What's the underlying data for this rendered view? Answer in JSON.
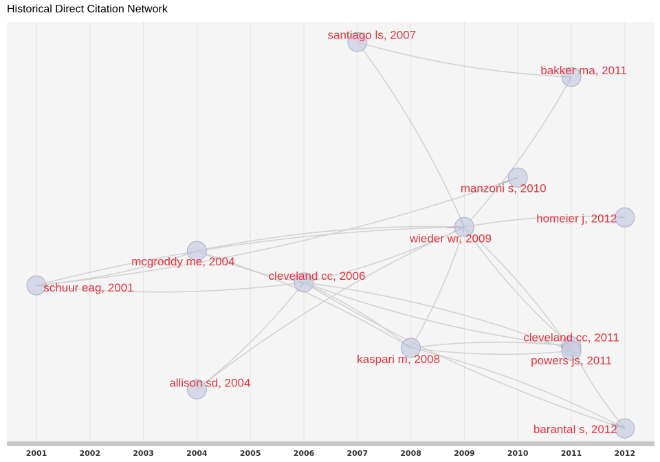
{
  "title": "Historical Direct Citation Network",
  "chart_data": {
    "type": "network",
    "x_axis": {
      "ticks": [
        "2001",
        "2002",
        "2003",
        "2004",
        "2005",
        "2006",
        "2007",
        "2008",
        "2009",
        "2010",
        "2011",
        "2012"
      ],
      "grid": true
    },
    "colors": {
      "panel": "#f5f5f5",
      "grid": "#e3e3e3",
      "edge": "#cfcfcf",
      "node_fill": "#c7cce0",
      "node_stroke": "#a9afc7",
      "label": "#e0343c",
      "axis_bar": "#c8c8c8"
    },
    "nodes": [
      {
        "id": "schuur2001",
        "label": "schuur eag, 2001",
        "year": 2001,
        "lane": 0.628
      },
      {
        "id": "mcgroddy2004",
        "label": "mcgroddy me, 2004",
        "year": 2004,
        "lane": 0.546
      },
      {
        "id": "allison2004",
        "label": "allison sd, 2004",
        "year": 2004,
        "lane": 0.876
      },
      {
        "id": "cleveland2006",
        "label": "cleveland cc, 2006",
        "year": 2006,
        "lane": 0.621
      },
      {
        "id": "santiago2007",
        "label": "santiago ls, 2007",
        "year": 2007,
        "lane": 0.048
      },
      {
        "id": "kaspari2008",
        "label": "kaspari m, 2008",
        "year": 2008,
        "lane": 0.777
      },
      {
        "id": "wieder2009",
        "label": "wieder wr, 2009",
        "year": 2009,
        "lane": 0.489
      },
      {
        "id": "manzoni2010",
        "label": "manzoni s, 2010",
        "year": 2010,
        "lane": 0.371
      },
      {
        "id": "bakker2011",
        "label": "bakker ma, 2011",
        "year": 2011,
        "lane": 0.131
      },
      {
        "id": "cleveland2011",
        "label": "cleveland cc, 2011",
        "year": 2011,
        "lane": 0.773
      },
      {
        "id": "powers2011",
        "label": "powers js, 2011",
        "year": 2011,
        "lane": 0.784
      },
      {
        "id": "homeier2012",
        "label": "homeier j, 2012",
        "year": 2012,
        "lane": 0.466
      },
      {
        "id": "barantal2012",
        "label": "barantal s, 2012",
        "year": 2012,
        "lane": 0.969
      }
    ],
    "edges": [
      [
        "schuur2001",
        "mcgroddy2004"
      ],
      [
        "schuur2001",
        "wieder2009"
      ],
      [
        "schuur2001",
        "manzoni2010"
      ],
      [
        "mcgroddy2004",
        "wieder2009"
      ],
      [
        "mcgroddy2004",
        "cleveland2006"
      ],
      [
        "mcgroddy2004",
        "kaspari2008"
      ],
      [
        "allison2004",
        "cleveland2006"
      ],
      [
        "allison2004",
        "wieder2009"
      ],
      [
        "cleveland2006",
        "wieder2009"
      ],
      [
        "cleveland2006",
        "kaspari2008"
      ],
      [
        "cleveland2006",
        "cleveland2011"
      ],
      [
        "cleveland2006",
        "powers2011"
      ],
      [
        "cleveland2006",
        "barantal2012"
      ],
      [
        "cleveland2006",
        "schuur2001"
      ],
      [
        "santiago2007",
        "bakker2011"
      ],
      [
        "santiago2007",
        "wieder2009"
      ],
      [
        "kaspari2008",
        "wieder2009"
      ],
      [
        "kaspari2008",
        "cleveland2011"
      ],
      [
        "kaspari2008",
        "powers2011"
      ],
      [
        "kaspari2008",
        "barantal2012"
      ],
      [
        "wieder2009",
        "bakker2011"
      ],
      [
        "wieder2009",
        "homeier2012"
      ],
      [
        "wieder2009",
        "cleveland2011"
      ],
      [
        "wieder2009",
        "powers2011"
      ],
      [
        "cleveland2011",
        "barantal2012"
      ]
    ]
  }
}
